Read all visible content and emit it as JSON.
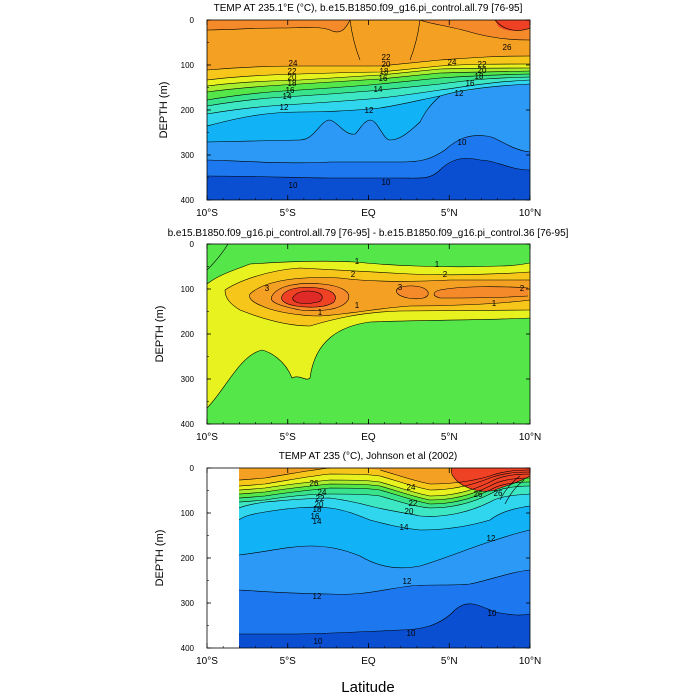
{
  "figure": {
    "bottom_xlabel": "Latitude"
  },
  "chart_data": [
    {
      "type": "heatmap",
      "title": "TEMP AT 235.1°E (°C), b.e15.B1850.f09_g16.pi_control.all.79 [76-95]",
      "ylabel": "DEPTH (m)",
      "xlabel": "",
      "x_ticks": [
        "10°S",
        "5°S",
        "EQ",
        "5°N",
        "10°N"
      ],
      "y_ticks": [
        "0",
        "100",
        "200",
        "300",
        "400"
      ],
      "xlim": [
        -10,
        10
      ],
      "ylim": [
        400,
        0
      ],
      "contour_interval": 1,
      "levels": [
        10,
        12,
        14,
        16,
        18,
        20,
        22,
        24,
        26
      ],
      "colors": [
        "#0a4fd2",
        "#1d78f0",
        "#2b99f5",
        "#12b2f7",
        "#2fd6ee",
        "#3ee7c4",
        "#39e38c",
        "#55e64a",
        "#a8ee2e",
        "#e8f21f",
        "#f6c61b",
        "#f4a022",
        "#f58a2a",
        "#ef4124",
        "#e02a28"
      ],
      "contour_labels": [
        "26",
        "24",
        "22",
        "20",
        "18",
        "16",
        "14",
        "12",
        "10"
      ],
      "depth_of_isotherm": {
        "lat": [
          -10,
          -8,
          -6,
          -5,
          -4,
          -3,
          -2,
          -1,
          0,
          1,
          2,
          3,
          4,
          5,
          6,
          7,
          8,
          9,
          10
        ],
        "t26": [
          20,
          18,
          16,
          12,
          6,
          2,
          0,
          0,
          0,
          0,
          0,
          2,
          14,
          14,
          28,
          38,
          40,
          42,
          40
        ],
        "t24": [
          72,
          70,
          68,
          68,
          72,
          76,
          80,
          80,
          78,
          78,
          80,
          82,
          86,
          88,
          86,
          80,
          78,
          78,
          78
        ],
        "t20": [
          88,
          88,
          86,
          86,
          90,
          94,
          98,
          98,
          96,
          96,
          98,
          100,
          102,
          102,
          100,
          98,
          96,
          96,
          96
        ],
        "t16": [
          120,
          118,
          114,
          110,
          108,
          110,
          112,
          112,
          110,
          110,
          112,
          114,
          114,
          114,
          112,
          110,
          108,
          108,
          108
        ],
        "t12": [
          250,
          236,
          206,
          200,
          200,
          200,
          202,
          202,
          200,
          200,
          196,
          190,
          170,
          160,
          150,
          150,
          148,
          146,
          144
        ],
        "t10": [
          348,
          348,
          350,
          354,
          354,
          354,
          356,
          356,
          356,
          356,
          356,
          356,
          352,
          340,
          280,
          258,
          262,
          272,
          280
        ]
      }
    },
    {
      "type": "heatmap",
      "title": "b.e15.B1850.f09_g16.pi_control.all.79 [76-95] - b.e15.B1850.f09_g16.pi_control.36 [76-95]",
      "ylabel": "DEPTH (m)",
      "xlabel": "",
      "x_ticks": [
        "10°S",
        "5°S",
        "EQ",
        "5°N",
        "10°N"
      ],
      "y_ticks": [
        "0",
        "100",
        "200",
        "300",
        "400"
      ],
      "xlim": [
        -10,
        10
      ],
      "ylim": [
        400,
        0
      ],
      "contour_interval": 0.5,
      "levels": [
        1,
        2,
        3
      ],
      "colors": [
        "#55e64a",
        "#e8f21f",
        "#f6c61b",
        "#f4a022",
        "#ef4124",
        "#e02a28"
      ],
      "contour_labels": [
        "1",
        "1",
        "2",
        "2",
        "3",
        "3",
        "2",
        "1",
        "1",
        "1"
      ],
      "max_anomaly": {
        "lat": -5.3,
        "depth": 118
      }
    },
    {
      "type": "heatmap",
      "title": "TEMP AT 235 (°C), Johnson et al (2002)",
      "ylabel": "DEPTH (m)",
      "xlabel": "",
      "x_ticks": [
        "10°S",
        "5°S",
        "EQ",
        "5°N",
        "10°N"
      ],
      "y_ticks": [
        "0",
        "100",
        "200",
        "300",
        "400"
      ],
      "xlim": [
        -10,
        10
      ],
      "ylim": [
        400,
        0
      ],
      "data_lat_range": [
        -8,
        10
      ],
      "contour_interval": 1,
      "levels": [
        10,
        12,
        14,
        16,
        18,
        20,
        22,
        24,
        26
      ],
      "colors": [
        "#0a4fd2",
        "#1d78f0",
        "#2b99f5",
        "#12b2f7",
        "#2fd6ee",
        "#3ee7c4",
        "#39e38c",
        "#55e64a",
        "#a8ee2e",
        "#e8f21f",
        "#f6c61b",
        "#f4a022",
        "#f58a2a",
        "#ef4124",
        "#e02a28"
      ],
      "contour_labels": [
        "26",
        "24",
        "22",
        "20",
        "18",
        "16",
        "14",
        "14",
        "12",
        "12",
        "12",
        "10",
        "10"
      ],
      "depth_of_isotherm": {
        "lat": [
          -8,
          -7,
          -6,
          -5,
          -4,
          -3,
          -2,
          -1,
          0,
          1,
          2,
          3,
          4,
          5,
          6,
          7,
          8,
          9,
          10
        ],
        "t26": [
          42,
          40,
          36,
          36,
          38,
          30,
          18,
          14,
          14,
          16,
          20,
          30,
          36,
          28,
          14,
          0,
          10,
          10,
          14
        ],
        "t24": [
          78,
          76,
          70,
          66,
          64,
          56,
          48,
          44,
          44,
          48,
          56,
          70,
          76,
          64,
          52,
          42,
          44,
          46,
          50
        ],
        "t20": [
          88,
          86,
          80,
          72,
          66,
          62,
          56,
          54,
          56,
          62,
          70,
          80,
          88,
          80,
          66,
          56,
          58,
          62,
          66
        ],
        "t14": [
          130,
          124,
          110,
          100,
          96,
          94,
          98,
          102,
          112,
          118,
          122,
          120,
          110,
          100,
          88,
          76,
          82,
          96,
          104
        ],
        "t12": [
          210,
          200,
          186,
          170,
          164,
          162,
          166,
          174,
          190,
          196,
          196,
          188,
          170,
          150,
          134,
          120,
          118,
          130,
          142
        ],
        "t10": [
          380,
          380,
          376,
          374,
          372,
          370,
          370,
          372,
          374,
          372,
          370,
          366,
          360,
          346,
          304,
          318,
          322,
          322,
          322
        ]
      }
    }
  ]
}
